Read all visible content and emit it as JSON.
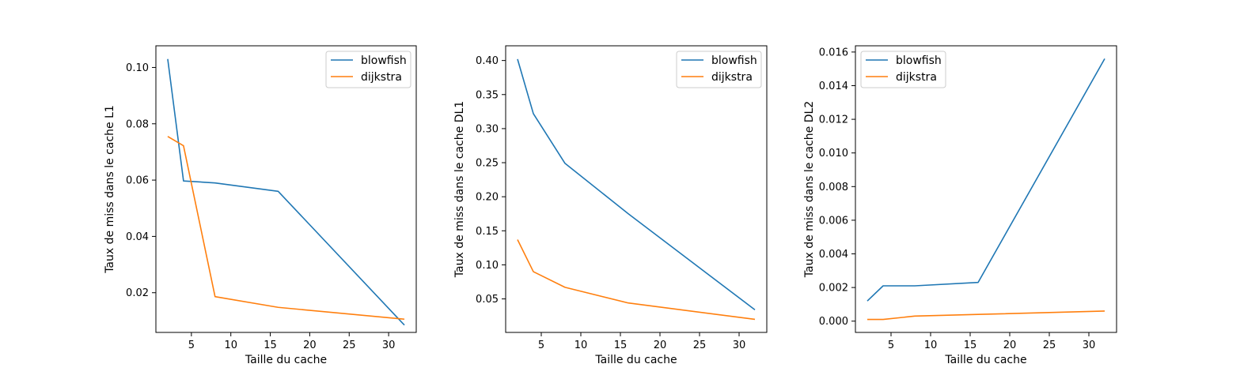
{
  "colors": {
    "blowfish": "#1f77b4",
    "dijkstra": "#ff7f0e"
  },
  "chart_data": [
    {
      "type": "line",
      "xlabel": "Taille du cache",
      "ylabel": "Taux de miss dans le cache L1",
      "x": [
        2,
        4,
        8,
        16,
        32
      ],
      "xlim": [
        0.5,
        33.5
      ],
      "ylim": [
        0.0059,
        0.1077
      ],
      "xticks": [
        5,
        10,
        15,
        20,
        25,
        30
      ],
      "yticks": [
        "0.02",
        "0.04",
        "0.06",
        "0.08",
        "0.10"
      ],
      "legend_position": "top-right",
      "grid": false,
      "series": [
        {
          "name": "blowfish",
          "values": [
            0.103,
            0.0597,
            0.059,
            0.056,
            0.0085
          ]
        },
        {
          "name": "dijkstra",
          "values": [
            0.0755,
            0.0722,
            0.0186,
            0.0148,
            0.0106
          ]
        }
      ]
    },
    {
      "type": "line",
      "xlabel": "Taille du cache",
      "ylabel": "Taux de miss dans le cache DL1",
      "x": [
        2,
        4,
        8,
        16,
        32
      ],
      "xlim": [
        0.5,
        33.5
      ],
      "ylim": [
        0.0008,
        0.4216
      ],
      "xticks": [
        5,
        10,
        15,
        20,
        25,
        30
      ],
      "yticks": [
        "0.05",
        "0.10",
        "0.15",
        "0.20",
        "0.25",
        "0.30",
        "0.35",
        "0.40"
      ],
      "legend_position": "top-right",
      "grid": false,
      "series": [
        {
          "name": "blowfish",
          "values": [
            0.402,
            0.322,
            0.249,
            0.175,
            0.034
          ]
        },
        {
          "name": "dijkstra",
          "values": [
            0.137,
            0.09,
            0.067,
            0.044,
            0.02
          ]
        }
      ]
    },
    {
      "type": "line",
      "xlabel": "Taille du cache",
      "ylabel": "Taux de miss dans le cache DL2",
      "x": [
        2,
        4,
        8,
        16,
        32
      ],
      "xlim": [
        0.5,
        33.5
      ],
      "ylim": [
        -0.00067,
        0.01637
      ],
      "xticks": [
        5,
        10,
        15,
        20,
        25,
        30
      ],
      "yticks": [
        "0.000",
        "0.002",
        "0.004",
        "0.006",
        "0.008",
        "0.010",
        "0.012",
        "0.014",
        "0.016"
      ],
      "legend_position": "top-left",
      "grid": false,
      "series": [
        {
          "name": "blowfish",
          "values": [
            0.0012,
            0.0021,
            0.0021,
            0.0023,
            0.0156
          ]
        },
        {
          "name": "dijkstra",
          "values": [
            0.0001,
            0.0001,
            0.0003,
            0.0004,
            0.0006
          ]
        }
      ]
    }
  ]
}
